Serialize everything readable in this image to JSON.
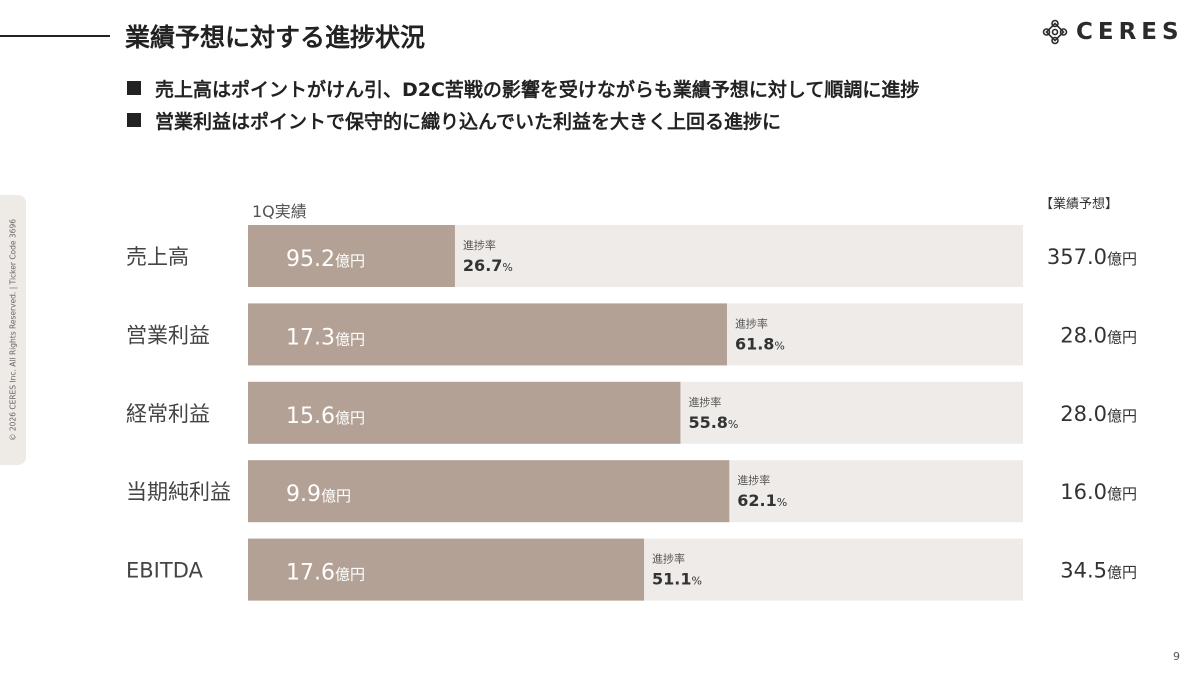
{
  "header": {
    "title": "業績予想に対する進捗状況",
    "logo_text": "CERES",
    "bullets": [
      "売上高はポイントがけん引、D2C苦戦の影響を受けながらも業績予想に対して順調に進捗",
      "営業利益はポイントで保守的に織り込んでいた利益を大きく上回る進捗に"
    ]
  },
  "side": {
    "copyright": "© 2026 CERES Inc. All Rights Reserved. | Ticker Code 3696"
  },
  "page_number": "9",
  "colors": {
    "actual": "#b3a195",
    "forecast": "#efebe8",
    "text": "#333333"
  },
  "chart_data": {
    "type": "bar",
    "orientation": "horizontal",
    "legend": {
      "actual": "1Q実績",
      "forecast": "【業績予想】"
    },
    "progress_label": "進捗率",
    "unit": "億円",
    "percent_unit": "%",
    "categories": [
      "売上高",
      "営業利益",
      "経常利益",
      "当期純利益",
      "EBITDA"
    ],
    "actual": [
      95.2,
      17.3,
      15.6,
      9.9,
      17.6
    ],
    "forecast": [
      357.0,
      28.0,
      28.0,
      16.0,
      34.5
    ],
    "progress": [
      26.7,
      61.8,
      55.8,
      62.1,
      51.1
    ]
  }
}
